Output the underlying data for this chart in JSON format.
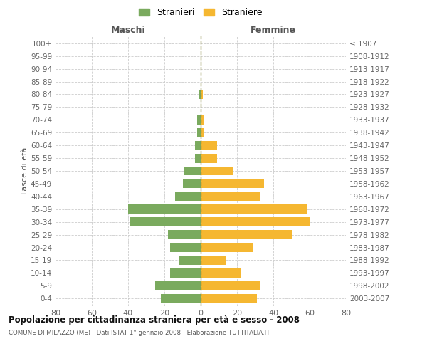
{
  "age_groups": [
    "100+",
    "95-99",
    "90-94",
    "85-89",
    "80-84",
    "75-79",
    "70-74",
    "65-69",
    "60-64",
    "55-59",
    "50-54",
    "45-49",
    "40-44",
    "35-39",
    "30-34",
    "25-29",
    "20-24",
    "15-19",
    "10-14",
    "5-9",
    "0-4"
  ],
  "birth_years": [
    "≤ 1907",
    "1908-1912",
    "1913-1917",
    "1918-1922",
    "1923-1927",
    "1928-1932",
    "1933-1937",
    "1938-1942",
    "1943-1947",
    "1948-1952",
    "1953-1957",
    "1958-1962",
    "1963-1967",
    "1968-1972",
    "1973-1977",
    "1978-1982",
    "1983-1987",
    "1988-1992",
    "1993-1997",
    "1998-2002",
    "2003-2007"
  ],
  "maschi": [
    0,
    0,
    0,
    0,
    1,
    0,
    2,
    2,
    3,
    3,
    9,
    10,
    14,
    40,
    39,
    18,
    17,
    12,
    17,
    25,
    22
  ],
  "femmine": [
    0,
    0,
    0,
    0,
    1,
    0,
    2,
    2,
    9,
    9,
    18,
    35,
    33,
    59,
    60,
    50,
    29,
    14,
    22,
    33,
    31
  ],
  "male_color": "#7aaa5e",
  "female_color": "#f5b731",
  "grid_color": "#cccccc",
  "dashed_line_color": "#888840",
  "title": "Popolazione per cittadinanza straniera per età e sesso - 2008",
  "subtitle": "COMUNE DI MILAZZO (ME) - Dati ISTAT 1° gennaio 2008 - Elaborazione TUTTITALIA.IT",
  "xlabel_left": "Maschi",
  "xlabel_right": "Femmine",
  "ylabel_left": "Fasce di età",
  "legend_male": "Stranieri",
  "legend_female": "Straniere",
  "xlim": 80
}
